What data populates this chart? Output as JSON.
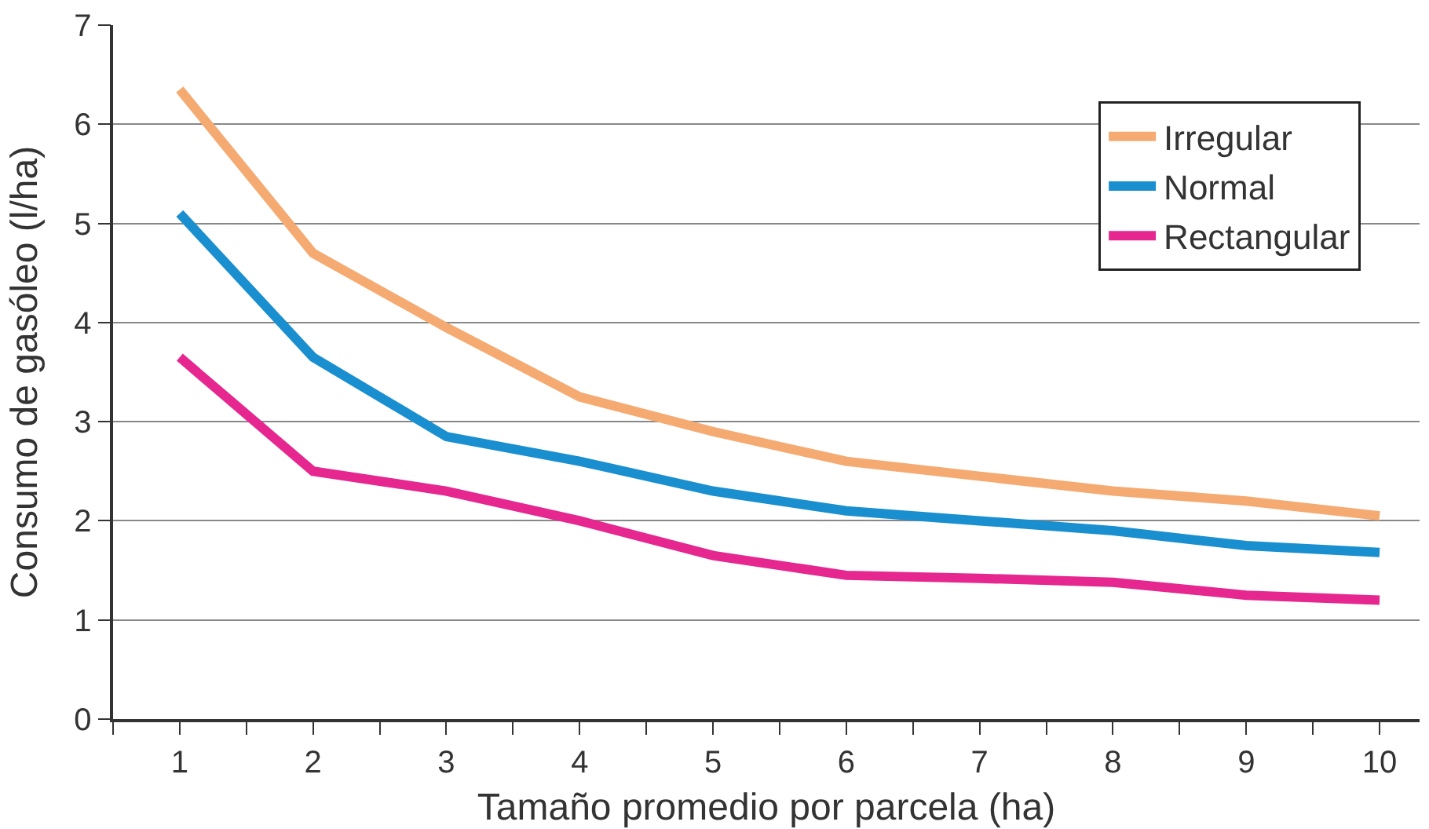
{
  "chart_data": {
    "type": "line",
    "xlabel": "Tamaño promedio por parcela (ha)",
    "ylabel": "Consumo de gasóleo (l/ha)",
    "x": [
      1,
      2,
      3,
      4,
      5,
      6,
      7,
      8,
      9,
      10
    ],
    "series": [
      {
        "name": "Irregular",
        "color": "#f5aa72",
        "values": [
          6.35,
          4.7,
          3.95,
          3.25,
          2.9,
          2.6,
          2.45,
          2.3,
          2.2,
          2.05
        ]
      },
      {
        "name": "Normal",
        "color": "#1a8fd0",
        "values": [
          5.1,
          3.65,
          2.85,
          2.6,
          2.3,
          2.1,
          2.0,
          1.9,
          1.75,
          1.68
        ]
      },
      {
        "name": "Rectangular",
        "color": "#e5278f",
        "values": [
          3.65,
          2.5,
          2.3,
          2.0,
          1.65,
          1.45,
          1.42,
          1.38,
          1.25,
          1.2
        ]
      }
    ],
    "xlim": [
      0.5,
      10.3
    ],
    "xticks": [
      {
        "value": 0.5,
        "label": null
      },
      1,
      {
        "value": 1.5,
        "label": null
      },
      2,
      {
        "value": 2.5,
        "label": null
      },
      3,
      {
        "value": 3.5,
        "label": null
      },
      4,
      {
        "value": 4.5,
        "label": null
      },
      5,
      {
        "value": 5.5,
        "label": null
      },
      6,
      {
        "value": 6.5,
        "label": null
      },
      7,
      {
        "value": 7.5,
        "label": null
      },
      8,
      {
        "value": 8.5,
        "label": null
      },
      9,
      {
        "value": 9.5,
        "label": null
      },
      10
    ],
    "ylim": [
      0,
      7
    ],
    "yticks": [
      0,
      1,
      2,
      3,
      4,
      5,
      6,
      7
    ],
    "grid": "y",
    "legend": "top right",
    "marker": "none",
    "line_style": "solid"
  }
}
